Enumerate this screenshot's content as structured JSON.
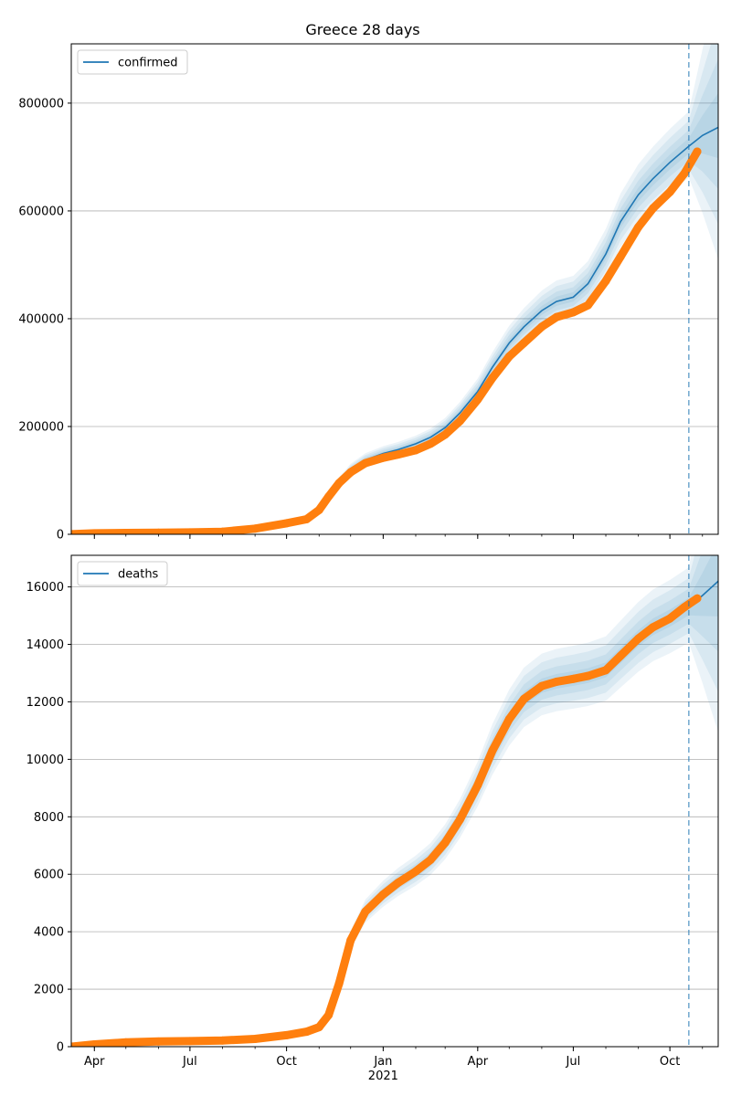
{
  "title": "Greece 28 days",
  "chart_data": [
    {
      "type": "line",
      "legend": "confirmed",
      "legend_position": "upper-left",
      "grid": "y",
      "x_start": "2020-03-10",
      "x_end": "2021-11-16",
      "ylim": [
        0,
        910000
      ],
      "yticks": [
        0,
        200000,
        400000,
        600000,
        800000
      ],
      "yticklabels": [
        "0",
        "200000",
        "400000",
        "600000",
        "800000"
      ],
      "forecast_start": "2021-10-19",
      "observed": {
        "x": [
          "2020-03-10",
          "2020-04-01",
          "2020-05-01",
          "2020-06-01",
          "2020-07-01",
          "2020-08-01",
          "2020-09-01",
          "2020-10-01",
          "2020-10-20",
          "2020-11-01",
          "2020-11-10",
          "2020-11-20",
          "2020-12-01",
          "2020-12-15",
          "2021-01-01",
          "2021-01-15",
          "2021-02-01",
          "2021-02-15",
          "2021-03-01",
          "2021-03-15",
          "2021-04-01",
          "2021-04-15",
          "2021-05-01",
          "2021-05-15",
          "2021-06-01",
          "2021-06-15",
          "2021-07-01",
          "2021-07-15",
          "2021-08-01",
          "2021-08-15",
          "2021-09-01",
          "2021-09-15",
          "2021-10-01",
          "2021-10-15",
          "2021-10-27"
        ],
        "y": [
          100,
          1800,
          2600,
          2950,
          3500,
          4800,
          10500,
          20500,
          28000,
          45000,
          70000,
          95000,
          115000,
          132000,
          142000,
          148000,
          156000,
          168000,
          185000,
          210000,
          250000,
          290000,
          330000,
          355000,
          385000,
          403000,
          412000,
          425000,
          470000,
          515000,
          570000,
          605000,
          635000,
          670000,
          710000
        ]
      },
      "model": {
        "x": [
          "2020-03-10",
          "2020-04-01",
          "2020-05-01",
          "2020-06-01",
          "2020-07-01",
          "2020-08-01",
          "2020-09-01",
          "2020-10-01",
          "2020-10-20",
          "2020-11-01",
          "2020-11-10",
          "2020-11-20",
          "2020-12-01",
          "2020-12-15",
          "2021-01-01",
          "2021-01-15",
          "2021-02-01",
          "2021-02-15",
          "2021-03-01",
          "2021-03-15",
          "2021-04-01",
          "2021-04-15",
          "2021-05-01",
          "2021-05-15",
          "2021-06-01",
          "2021-06-15",
          "2021-07-01",
          "2021-07-15",
          "2021-08-01",
          "2021-08-15",
          "2021-09-01",
          "2021-09-15",
          "2021-10-01",
          "2021-10-19",
          "2021-11-01",
          "2021-11-16"
        ],
        "y": [
          100,
          1800,
          2600,
          2950,
          3500,
          4800,
          10500,
          20500,
          28000,
          45000,
          70000,
          97000,
          120000,
          138000,
          150000,
          157000,
          168000,
          180000,
          198000,
          225000,
          265000,
          310000,
          355000,
          385000,
          415000,
          432000,
          440000,
          465000,
          520000,
          580000,
          630000,
          660000,
          690000,
          720000,
          740000,
          755000
        ]
      }
    },
    {
      "type": "line",
      "legend": "deaths",
      "legend_position": "upper-left",
      "grid": "y",
      "x_start": "2020-03-10",
      "x_end": "2021-11-16",
      "ylim": [
        0,
        17100
      ],
      "yticks": [
        0,
        2000,
        4000,
        6000,
        8000,
        10000,
        12000,
        14000,
        16000
      ],
      "yticklabels": [
        "0",
        "2000",
        "4000",
        "6000",
        "8000",
        "10000",
        "12000",
        "14000",
        "16000"
      ],
      "xticks": [
        "2020-04-01",
        "2020-07-01",
        "2020-10-01",
        "2021-01-01",
        "2021-04-01",
        "2021-07-01",
        "2021-10-01"
      ],
      "xticklabels": [
        "Apr",
        "Jul",
        "Oct",
        "Jan",
        "Apr",
        "Jul",
        "Oct"
      ],
      "year_label": "2021",
      "forecast_start": "2021-10-19",
      "observed": {
        "x": [
          "2020-03-10",
          "2020-04-01",
          "2020-05-01",
          "2020-06-01",
          "2020-07-01",
          "2020-08-01",
          "2020-09-01",
          "2020-10-01",
          "2020-10-20",
          "2020-11-01",
          "2020-11-10",
          "2020-11-20",
          "2020-12-01",
          "2020-12-15",
          "2021-01-01",
          "2021-01-15",
          "2021-02-01",
          "2021-02-15",
          "2021-03-01",
          "2021-03-15",
          "2021-04-01",
          "2021-04-15",
          "2021-05-01",
          "2021-05-15",
          "2021-06-01",
          "2021-06-15",
          "2021-07-01",
          "2021-07-15",
          "2021-08-01",
          "2021-08-15",
          "2021-09-01",
          "2021-09-15",
          "2021-10-01",
          "2021-10-15",
          "2021-10-27"
        ],
        "y": [
          0,
          80,
          150,
          180,
          195,
          215,
          270,
          400,
          520,
          680,
          1100,
          2200,
          3700,
          4700,
          5300,
          5700,
          6100,
          6500,
          7100,
          7900,
          9100,
          10300,
          11400,
          12100,
          12550,
          12700,
          12800,
          12900,
          13100,
          13600,
          14200,
          14600,
          14900,
          15300,
          15600
        ]
      },
      "model": {
        "x": [
          "2020-03-10",
          "2020-04-01",
          "2020-05-01",
          "2020-06-01",
          "2020-07-01",
          "2020-08-01",
          "2020-09-01",
          "2020-10-01",
          "2020-10-20",
          "2020-11-01",
          "2020-11-10",
          "2020-11-20",
          "2020-12-01",
          "2020-12-15",
          "2021-01-01",
          "2021-01-15",
          "2021-02-01",
          "2021-02-15",
          "2021-03-01",
          "2021-03-15",
          "2021-04-01",
          "2021-04-15",
          "2021-05-01",
          "2021-05-15",
          "2021-06-01",
          "2021-06-15",
          "2021-07-01",
          "2021-07-15",
          "2021-08-01",
          "2021-08-15",
          "2021-09-01",
          "2021-09-15",
          "2021-10-01",
          "2021-10-19",
          "2021-11-01",
          "2021-11-16"
        ],
        "y": [
          0,
          80,
          150,
          180,
          195,
          215,
          270,
          400,
          520,
          680,
          1100,
          2200,
          3700,
          4700,
          5300,
          5700,
          6100,
          6500,
          7100,
          7900,
          9100,
          10300,
          11400,
          12100,
          12550,
          12700,
          12800,
          12900,
          13100,
          13600,
          14200,
          14600,
          14900,
          15300,
          15700,
          16200
        ]
      }
    }
  ],
  "colors": {
    "observed": "#ff7f0e",
    "model": "#1f77b4",
    "band": "#1f77b4",
    "forecast_line": "#1f77b4",
    "grid": "#b0b0b0"
  }
}
